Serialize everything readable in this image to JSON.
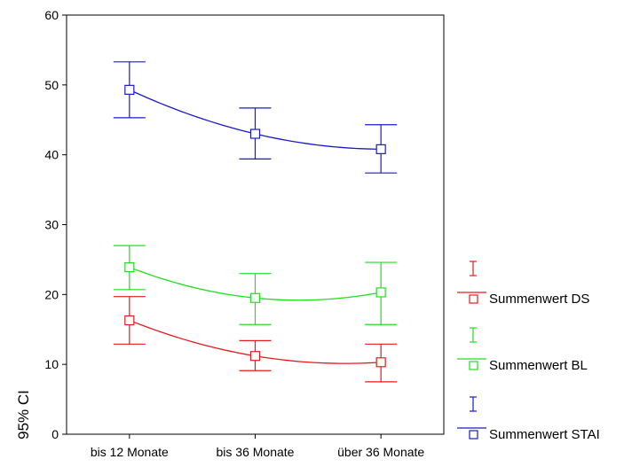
{
  "chart_data": {
    "type": "line",
    "ylabel": "95% CI",
    "xlabel": "",
    "categories": [
      "bis 12 Monate",
      "bis 36 Monate",
      "über 36 Monate"
    ],
    "ylim": [
      0,
      60
    ],
    "yticks": [
      0,
      10,
      20,
      30,
      40,
      50,
      60
    ],
    "grid": false,
    "legend_position": "right",
    "error_bars": true,
    "series": [
      {
        "name": "Summenwert DS",
        "color": "#e41a1c",
        "values": [
          16.3,
          11.2,
          10.3
        ],
        "ci_low": [
          12.9,
          9.1,
          7.5
        ],
        "ci_high": [
          19.7,
          13.4,
          12.9
        ]
      },
      {
        "name": "Summenwert BL",
        "color": "#1ee01e",
        "values": [
          23.9,
          19.5,
          20.3
        ],
        "ci_low": [
          20.7,
          15.7,
          15.7
        ],
        "ci_high": [
          27.0,
          23.0,
          24.6
        ]
      },
      {
        "name": "Summenwert STAI",
        "color": "#1a1acc",
        "values": [
          49.3,
          43.0,
          40.8
        ],
        "ci_low": [
          45.3,
          39.4,
          37.4
        ],
        "ci_high": [
          53.3,
          46.7,
          44.3
        ]
      }
    ]
  }
}
